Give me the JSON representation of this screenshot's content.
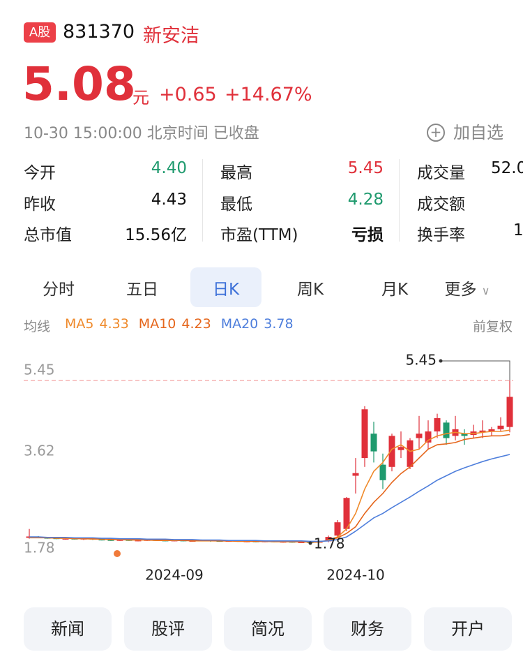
{
  "header": {
    "badge": "A股",
    "code": "831370",
    "name": "新安洁",
    "price": "5.08",
    "unit": "元",
    "change": "+0.65",
    "change_pct": "+14.67%",
    "time": "10-30 15:00:00 北京时间 已收盘",
    "watch": "加自选"
  },
  "stats": [
    [
      {
        "label": "今开",
        "value": "4.40"
      },
      {
        "label": "最高",
        "value": "5.45"
      },
      {
        "label": "成交量",
        "value": "52.0"
      }
    ],
    [
      {
        "label": "昨收",
        "value": "4.43"
      },
      {
        "label": "最低",
        "value": "4.28"
      },
      {
        "label": "成交额",
        "value": ""
      }
    ],
    [
      {
        "label": "总市值",
        "value": "15.56亿"
      },
      {
        "label": "市盈(TTM)",
        "value": "亏损"
      },
      {
        "label": "换手率",
        "value": "1"
      }
    ]
  ],
  "tabs": [
    "分时",
    "五日",
    "日K",
    "周K",
    "月K",
    "更多"
  ],
  "ma_label": "均线",
  "adjust": "前复权",
  "chart_data": {
    "type": "candlestick",
    "categories": [
      null,
      null,
      null,
      null,
      null,
      null,
      null,
      null,
      null,
      null,
      null,
      null,
      null,
      null,
      null,
      null,
      "2024-09",
      null,
      null,
      null,
      null,
      null,
      null,
      null,
      null,
      null,
      null,
      null,
      null,
      null,
      null,
      null,
      null,
      null,
      null,
      null,
      "2024-10",
      null,
      null,
      null,
      null,
      null,
      null,
      null,
      null,
      null,
      null,
      null,
      null,
      null,
      null,
      null,
      null,
      null
    ],
    "open": [
      1.9,
      1.92,
      1.9,
      1.89,
      1.88,
      1.88,
      1.87,
      1.88,
      1.86,
      1.85,
      1.84,
      1.85,
      1.84,
      1.84,
      1.85,
      1.84,
      1.83,
      1.84,
      1.83,
      1.83,
      1.84,
      1.83,
      1.82,
      1.83,
      1.82,
      1.82,
      1.81,
      1.82,
      1.81,
      1.81,
      1.8,
      1.8,
      1.79,
      1.82,
      1.95,
      2.1,
      3.3,
      3.7,
      4.25,
      3.55,
      3.5,
      3.88,
      3.5,
      4.15,
      4.05,
      4.3,
      4.5,
      4.2,
      4.25,
      4.22,
      4.28,
      4.3,
      4.35,
      4.4
    ],
    "close": [
      1.93,
      1.9,
      1.89,
      1.88,
      1.88,
      1.87,
      1.88,
      1.86,
      1.85,
      1.84,
      1.85,
      1.84,
      1.84,
      1.85,
      1.84,
      1.83,
      1.84,
      1.83,
      1.83,
      1.84,
      1.83,
      1.82,
      1.83,
      1.82,
      1.82,
      1.81,
      1.82,
      1.81,
      1.81,
      1.8,
      1.8,
      1.79,
      1.81,
      1.92,
      2.25,
      2.8,
      3.36,
      4.8,
      3.85,
      3.2,
      4.2,
      3.95,
      4.1,
      4.25,
      4.3,
      4.6,
      4.15,
      4.35,
      4.2,
      4.3,
      4.32,
      4.35,
      4.43,
      5.08
    ],
    "high": [
      2.1,
      1.94,
      1.92,
      1.91,
      1.9,
      1.9,
      1.9,
      1.89,
      1.87,
      1.86,
      1.87,
      1.86,
      1.86,
      1.87,
      1.86,
      1.85,
      1.86,
      1.85,
      1.85,
      1.86,
      1.85,
      1.85,
      1.85,
      1.84,
      1.84,
      1.83,
      1.84,
      1.83,
      1.83,
      1.82,
      1.82,
      1.81,
      1.83,
      1.95,
      2.3,
      2.82,
      3.7,
      4.87,
      4.52,
      3.8,
      4.25,
      4.3,
      4.15,
      4.65,
      4.55,
      4.7,
      4.55,
      4.65,
      4.35,
      4.45,
      4.55,
      4.4,
      4.62,
      5.45
    ],
    "low": [
      1.88,
      1.89,
      1.88,
      1.87,
      1.86,
      1.86,
      1.85,
      1.85,
      1.84,
      1.83,
      1.83,
      1.83,
      1.82,
      1.83,
      1.83,
      1.82,
      1.82,
      1.82,
      1.81,
      1.82,
      1.81,
      1.81,
      1.81,
      1.81,
      1.8,
      1.8,
      1.8,
      1.8,
      1.79,
      1.79,
      1.79,
      1.78,
      1.79,
      1.8,
      1.92,
      2.05,
      2.9,
      3.5,
      3.6,
      3.0,
      3.4,
      3.7,
      3.45,
      3.9,
      3.9,
      4.15,
      4.0,
      4.1,
      4.0,
      4.15,
      4.15,
      4.2,
      4.3,
      4.28
    ],
    "up_color": "#e0303a",
    "down_color": "#1f9a6e",
    "ma": [
      {
        "name": "MA5",
        "value": 4.33,
        "color": "#ef8a2b",
        "values": [
          1.9,
          1.9,
          1.9,
          1.89,
          1.89,
          1.88,
          1.88,
          1.87,
          1.87,
          1.86,
          1.86,
          1.85,
          1.85,
          1.85,
          1.84,
          1.84,
          1.84,
          1.84,
          1.83,
          1.83,
          1.83,
          1.83,
          1.83,
          1.82,
          1.82,
          1.82,
          1.82,
          1.81,
          1.81,
          1.81,
          1.81,
          1.8,
          1.8,
          1.85,
          1.92,
          2.1,
          2.45,
          3.0,
          3.4,
          3.6,
          3.9,
          4.0,
          3.85,
          3.9,
          4.1,
          4.2,
          4.25,
          4.28,
          4.25,
          4.25,
          4.28,
          4.3,
          4.3,
          4.33
        ]
      },
      {
        "name": "MA10",
        "value": 4.23,
        "color": "#e5661c",
        "values": [
          1.91,
          1.91,
          1.9,
          1.9,
          1.9,
          1.89,
          1.89,
          1.88,
          1.88,
          1.87,
          1.87,
          1.86,
          1.86,
          1.86,
          1.85,
          1.85,
          1.85,
          1.84,
          1.84,
          1.84,
          1.84,
          1.83,
          1.83,
          1.83,
          1.83,
          1.82,
          1.82,
          1.82,
          1.82,
          1.81,
          1.81,
          1.81,
          1.81,
          1.84,
          1.9,
          2.0,
          2.15,
          2.45,
          2.7,
          2.9,
          3.15,
          3.35,
          3.5,
          3.7,
          3.9,
          4.0,
          4.02,
          4.05,
          4.12,
          4.15,
          4.18,
          4.2,
          4.2,
          4.23
        ]
      },
      {
        "name": "MA20",
        "value": 3.78,
        "color": "#4f7fdc",
        "values": [
          1.92,
          1.92,
          1.91,
          1.91,
          1.91,
          1.9,
          1.9,
          1.9,
          1.89,
          1.89,
          1.88,
          1.88,
          1.88,
          1.87,
          1.87,
          1.87,
          1.86,
          1.86,
          1.86,
          1.85,
          1.85,
          1.85,
          1.84,
          1.84,
          1.84,
          1.84,
          1.83,
          1.83,
          1.83,
          1.83,
          1.83,
          1.82,
          1.82,
          1.83,
          1.86,
          1.92,
          2.05,
          2.2,
          2.35,
          2.45,
          2.58,
          2.7,
          2.82,
          2.95,
          3.07,
          3.2,
          3.3,
          3.4,
          3.48,
          3.55,
          3.62,
          3.68,
          3.73,
          3.78
        ]
      }
    ],
    "ylim": [
      1.78,
      5.45
    ],
    "yticks": [
      5.45,
      3.62,
      1.78
    ]
  },
  "buttons": [
    "新闻",
    "股评",
    "简况",
    "财务",
    "开户"
  ]
}
